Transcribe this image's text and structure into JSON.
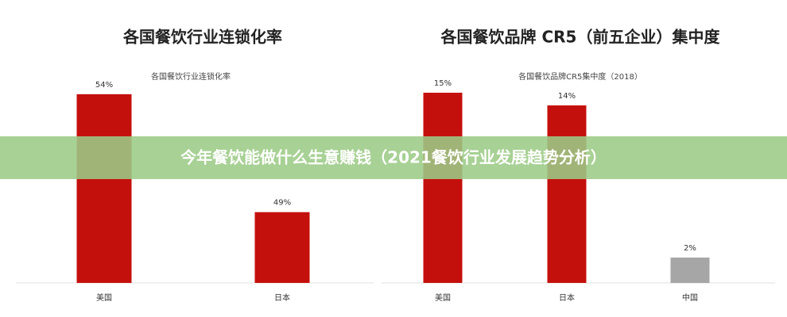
{
  "chart_data": [
    {
      "type": "bar",
      "title": "各国餐饮行业连锁化率",
      "subtitle": "各国餐饮行业连锁化率",
      "categories": [
        "美国",
        "日本"
      ],
      "values": [
        54,
        49
      ],
      "value_labels": [
        "54%",
        "49%"
      ],
      "colors": [
        "#c4100c",
        "#c4100c"
      ],
      "ylim": [
        46,
        54.6
      ]
    },
    {
      "type": "bar",
      "title": "各国餐饮品牌 CR5（前五企业）集中度",
      "subtitle": "各国餐饮品牌CR5集中度（2018）",
      "categories": [
        "美国",
        "日本",
        "中国"
      ],
      "values": [
        15,
        14,
        2
      ],
      "value_labels": [
        "15%",
        "14%",
        "2%"
      ],
      "colors": [
        "#c4100c",
        "#c4100c",
        "#a6a6a6"
      ],
      "ylim": [
        0,
        16
      ]
    }
  ],
  "banner": {
    "text": "今年餐饮能做什么生意赚钱（2021餐饮行业发展趋势分析）"
  }
}
